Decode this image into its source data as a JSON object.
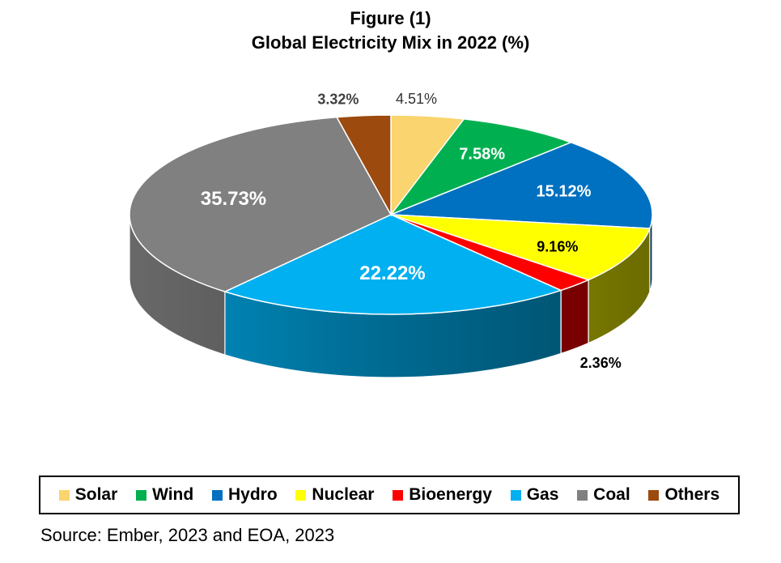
{
  "title": {
    "line1": "Figure (1)",
    "line2": "Global Electricity Mix in 2022 (%)"
  },
  "chart_data": {
    "type": "pie",
    "title": "Global Electricity Mix in 2022 (%)",
    "categories": [
      "Solar",
      "Wind",
      "Hydro",
      "Nuclear",
      "Bioenergy",
      "Gas",
      "Coal",
      "Others"
    ],
    "values": [
      4.51,
      7.58,
      15.12,
      9.16,
      2.36,
      22.22,
      35.73,
      3.32
    ],
    "data_labels": [
      "4.51%",
      "7.58%",
      "15.12%",
      "9.16%",
      "2.36%",
      "22.22%",
      "35.73%",
      "3.32%"
    ],
    "colors": [
      "#FAD46E",
      "#00B050",
      "#0070C0",
      "#FFFF00",
      "#FF0000",
      "#00B0F0",
      "#808080",
      "#9C4A0E"
    ],
    "style": "3d-pie",
    "legend_position": "bottom"
  },
  "source": "Source: Ember, 2023 and EOA, 2023"
}
